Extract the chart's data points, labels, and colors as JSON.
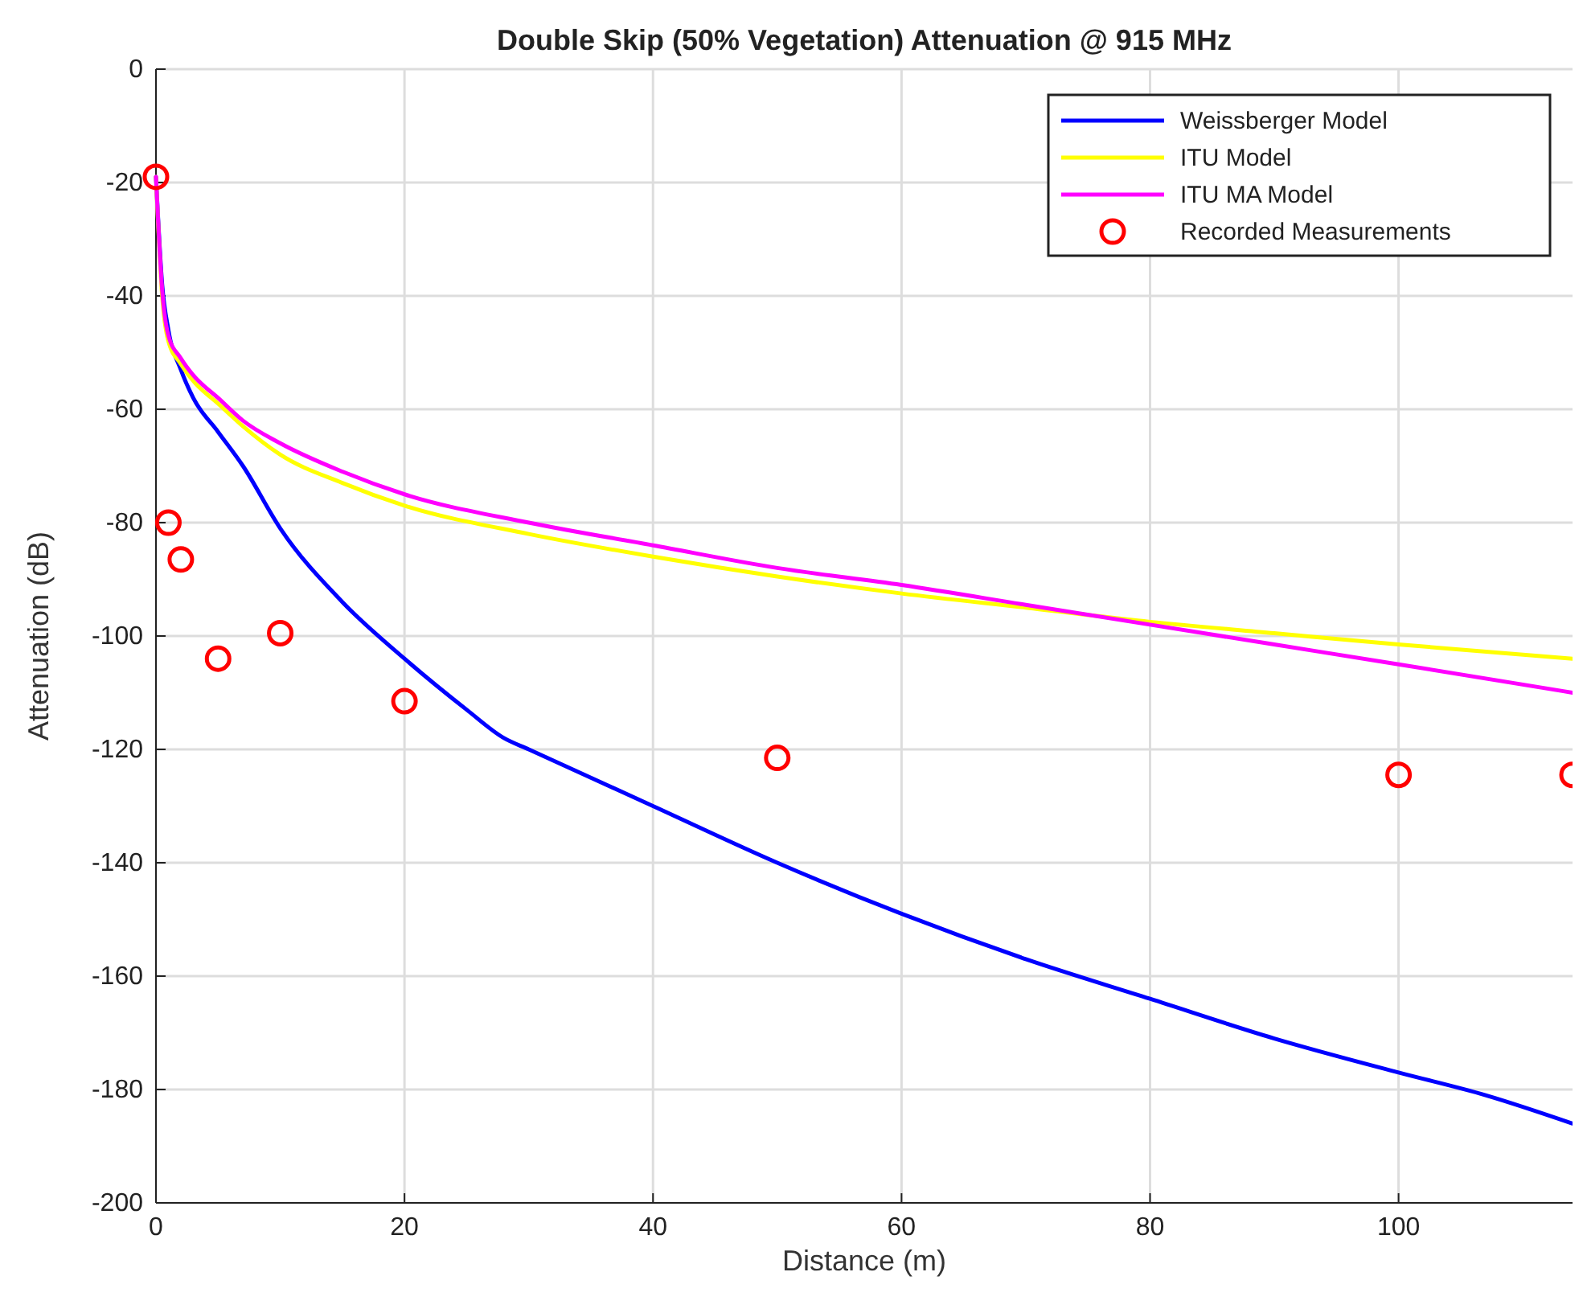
{
  "chart_data": {
    "type": "line",
    "title": "Double Skip (50% Vegetation) Attenuation @ 915 MHz",
    "xlabel": "Distance (m)",
    "ylabel": "Attenuation (dB)",
    "xlim": [
      0,
      114
    ],
    "xticks": [
      0,
      20,
      40,
      60,
      80,
      100
    ],
    "ylim": [
      -200,
      0
    ],
    "yticks": [
      -200,
      -180,
      -160,
      -140,
      -120,
      -100,
      -80,
      -60,
      -40,
      -20,
      0
    ],
    "grid": true,
    "legend": "top right",
    "series": [
      {
        "name": "Weissberger Model",
        "color": "#0000ff",
        "x": [
          0,
          0.5,
          1,
          2,
          3,
          5,
          7,
          10,
          15,
          20,
          25,
          28,
          30,
          40,
          50,
          60,
          70,
          80,
          90,
          100,
          107,
          114
        ],
        "values": [
          -19,
          -38,
          -46,
          -53,
          -58,
          -64,
          -70,
          -81,
          -94,
          -104,
          -113,
          -118,
          -120,
          -130,
          -140,
          -149,
          -157,
          -164,
          -171,
          -177,
          -181,
          -186
        ]
      },
      {
        "name": "ITU Model",
        "color": "#ffff00",
        "x": [
          0,
          0.5,
          1,
          2,
          3,
          5,
          7,
          10,
          15,
          20,
          30,
          40,
          50,
          60,
          70,
          80,
          90,
          100,
          114
        ],
        "values": [
          -19,
          -40,
          -48,
          -52,
          -55,
          -59,
          -63,
          -68,
          -73,
          -77,
          -82,
          -86,
          -89.5,
          -92.5,
          -95,
          -97.5,
          -99.5,
          -101.5,
          -104
        ]
      },
      {
        "name": "ITU MA Model",
        "color": "#ff00ff",
        "x": [
          0,
          0.5,
          1,
          2,
          3,
          5,
          7,
          10,
          15,
          20,
          30,
          40,
          50,
          60,
          70,
          80,
          90,
          100,
          114
        ],
        "values": [
          -19,
          -39,
          -47,
          -51,
          -54,
          -58,
          -62,
          -66,
          -71,
          -75,
          -80,
          -84,
          -88,
          -91,
          -94.5,
          -98,
          -101.5,
          -105,
          -110
        ]
      },
      {
        "name": "Recorded Measurements",
        "color": "#ff0000",
        "type": "scatter",
        "marker": "circle",
        "x": [
          0,
          1,
          2,
          5,
          10,
          20,
          50,
          100,
          114
        ],
        "values": [
          -19,
          -80,
          -86.5,
          -104,
          -99.5,
          -111.5,
          -121.5,
          -124.5,
          -124.5
        ]
      }
    ]
  }
}
